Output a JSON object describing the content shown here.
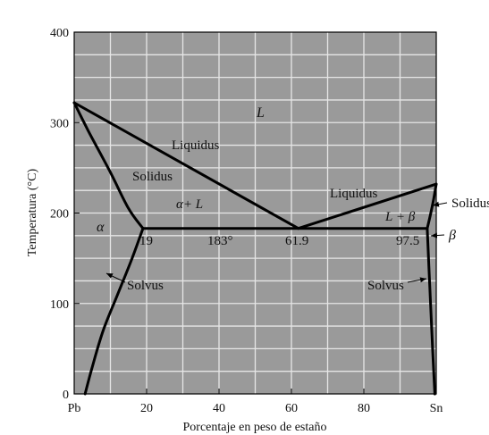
{
  "diagram": {
    "x_axis": {
      "title": "Porcentaje en peso de estaño",
      "ticks": [
        {
          "value": 0,
          "label": "Pb"
        },
        {
          "value": 20,
          "label": "20"
        },
        {
          "value": 40,
          "label": "40"
        },
        {
          "value": 60,
          "label": "60"
        },
        {
          "value": 80,
          "label": "80"
        },
        {
          "value": 100,
          "label": "Sn"
        }
      ],
      "range": [
        0,
        100
      ]
    },
    "y_axis": {
      "title": "Temperatura (°C)",
      "ticks": [
        0,
        100,
        200,
        300,
        400
      ],
      "tick_labels": [
        "0",
        "100",
        "200",
        "300",
        "400"
      ],
      "range": [
        0,
        400
      ]
    },
    "grid": true,
    "colors": {
      "background": "#9a9a9a",
      "grid": "#e6e6e6",
      "line": "#000000"
    },
    "curves": {
      "liquidus_left": [
        [
          0,
          322
        ],
        [
          61.9,
          183
        ]
      ],
      "liquidus_right": [
        [
          61.9,
          183
        ],
        [
          100,
          232
        ]
      ],
      "solidus_left": [
        [
          0,
          322
        ],
        [
          4,
          290
        ],
        [
          10,
          245
        ],
        [
          15,
          205
        ],
        [
          19,
          183
        ]
      ],
      "solidus_right": [
        [
          97.5,
          183
        ],
        [
          98.5,
          200
        ],
        [
          99.3,
          216
        ],
        [
          100,
          232
        ]
      ],
      "eutectic": [
        [
          19,
          183
        ],
        [
          97.5,
          183
        ]
      ],
      "solvus_left": [
        [
          19,
          183
        ],
        [
          16,
          150
        ],
        [
          12,
          110
        ],
        [
          8,
          70
        ],
        [
          5,
          30
        ],
        [
          3,
          0
        ]
      ],
      "solvus_right": [
        [
          97.5,
          183
        ],
        [
          98.2,
          120
        ],
        [
          99,
          50
        ],
        [
          99.6,
          0
        ]
      ]
    },
    "labels": {
      "L": "L",
      "liquidus_left": "Liquidus",
      "liquidus_right": "Liquidus",
      "solidus_left": "Solidus",
      "solidus_right": "Solidus",
      "alpha_L": "α+ L",
      "L_beta": "L + β",
      "alpha": "α",
      "beta": "β",
      "c19": "19",
      "t183": "183°",
      "c619": "61.9",
      "c975": "97.5",
      "solvus_left": "Solvus",
      "solvus_right": "Solvus"
    }
  }
}
